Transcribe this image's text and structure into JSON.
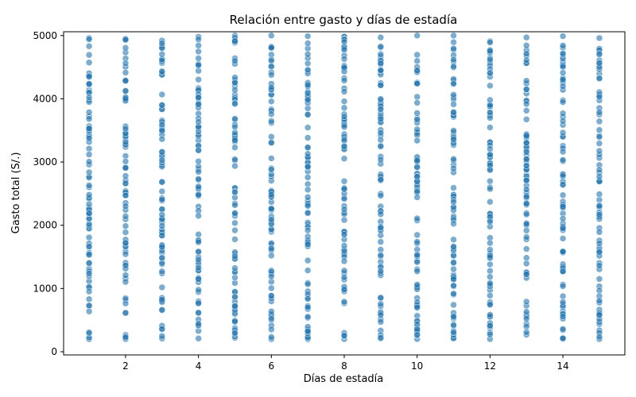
{
  "chart_data": {
    "type": "scatter",
    "title": "Relación entre gasto y días de estadía",
    "xlabel": "Días de estadía",
    "ylabel": "Gasto total (S/.)",
    "xlim": [
      0.3,
      15.7
    ],
    "ylim": [
      -50,
      5060
    ],
    "xticks": [
      2,
      4,
      6,
      8,
      10,
      12,
      14
    ],
    "yticks": [
      0,
      1000,
      2000,
      3000,
      4000,
      5000
    ],
    "x_categories": [
      1,
      2,
      3,
      4,
      5,
      6,
      7,
      8,
      9,
      10,
      11,
      12,
      13,
      14,
      15
    ],
    "y_range_observed": [
      200,
      5000
    ],
    "points_per_category": 80,
    "grid": false,
    "legend": "none",
    "marker_color": "#1f77b4",
    "marker_alpha": 0.6,
    "marker_edge_color": "#ffffff",
    "series": [
      {
        "x": [
          1,
          2,
          3,
          4,
          5,
          6,
          7,
          8,
          9,
          10,
          11,
          12,
          13,
          14,
          15
        ],
        "y_min": [
          200,
          200,
          210,
          210,
          220,
          200,
          200,
          200,
          210,
          200,
          210,
          200,
          270,
          200,
          200
        ],
        "y_max": [
          4960,
          4950,
          4920,
          4980,
          5000,
          5000,
          4990,
          4990,
          4970,
          5000,
          5000,
          4910,
          4970,
          4990,
          4960
        ]
      }
    ]
  }
}
